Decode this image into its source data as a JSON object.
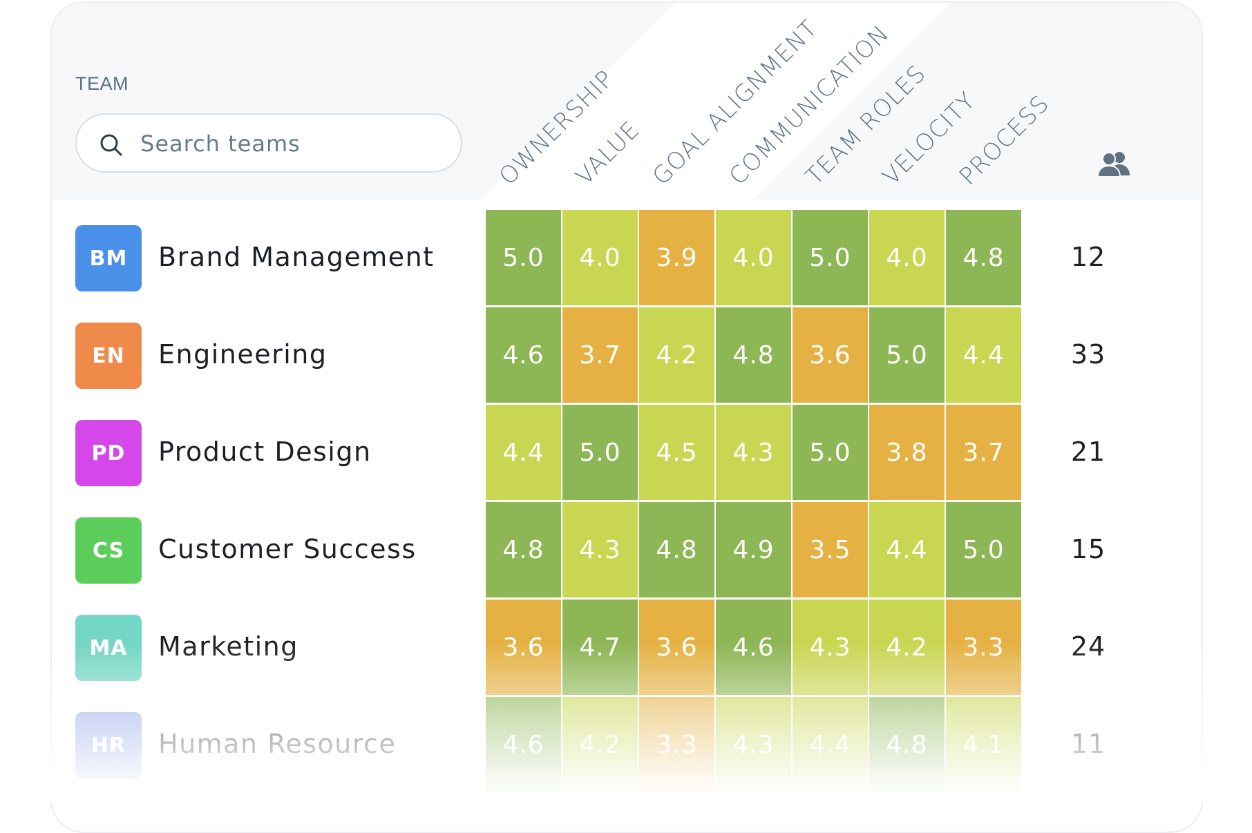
{
  "header": {
    "team_label": "TEAM",
    "search_placeholder": "Search teams",
    "search_value": ""
  },
  "columns": [
    "OWNERSHIP",
    "VALUE",
    "GOAL ALIGNMENT",
    "COMMUNICATION",
    "TEAM ROLES",
    "VELOCITY",
    "PROCESS"
  ],
  "member_icon": "people-icon",
  "colors": {
    "high": "#8db654",
    "mid": "#c9d652",
    "low": "#e5b142"
  },
  "teams": [
    {
      "initials": "BM",
      "name": "Brand Management",
      "color": "#4a90e8",
      "scores": [
        "5.0",
        "4.0",
        "3.9",
        "4.0",
        "5.0",
        "4.0",
        "4.8"
      ],
      "members": "12"
    },
    {
      "initials": "EN",
      "name": "Engineering",
      "color": "#ef8a4a",
      "scores": [
        "4.6",
        "3.7",
        "4.2",
        "4.8",
        "3.6",
        "5.0",
        "4.4"
      ],
      "members": "33"
    },
    {
      "initials": "PD",
      "name": "Product Design",
      "color": "#d448ea",
      "scores": [
        "4.4",
        "5.0",
        "4.5",
        "4.3",
        "5.0",
        "3.8",
        "3.7"
      ],
      "members": "21"
    },
    {
      "initials": "CS",
      "name": "Customer Success",
      "color": "#5ccd5a",
      "scores": [
        "4.8",
        "4.3",
        "4.8",
        "4.9",
        "3.5",
        "4.4",
        "5.0"
      ],
      "members": "15"
    },
    {
      "initials": "MA",
      "name": "Marketing",
      "color": "#74d6c4",
      "scores": [
        "3.6",
        "4.7",
        "3.6",
        "4.6",
        "4.3",
        "4.2",
        "3.3"
      ],
      "members": "24"
    },
    {
      "initials": "HR",
      "name": "Human Resource",
      "color": "#8ea3e6",
      "scores": [
        "4.6",
        "4.2",
        "3.3",
        "4.3",
        "4.4",
        "4.8",
        "4.1"
      ],
      "members": "11"
    }
  ]
}
